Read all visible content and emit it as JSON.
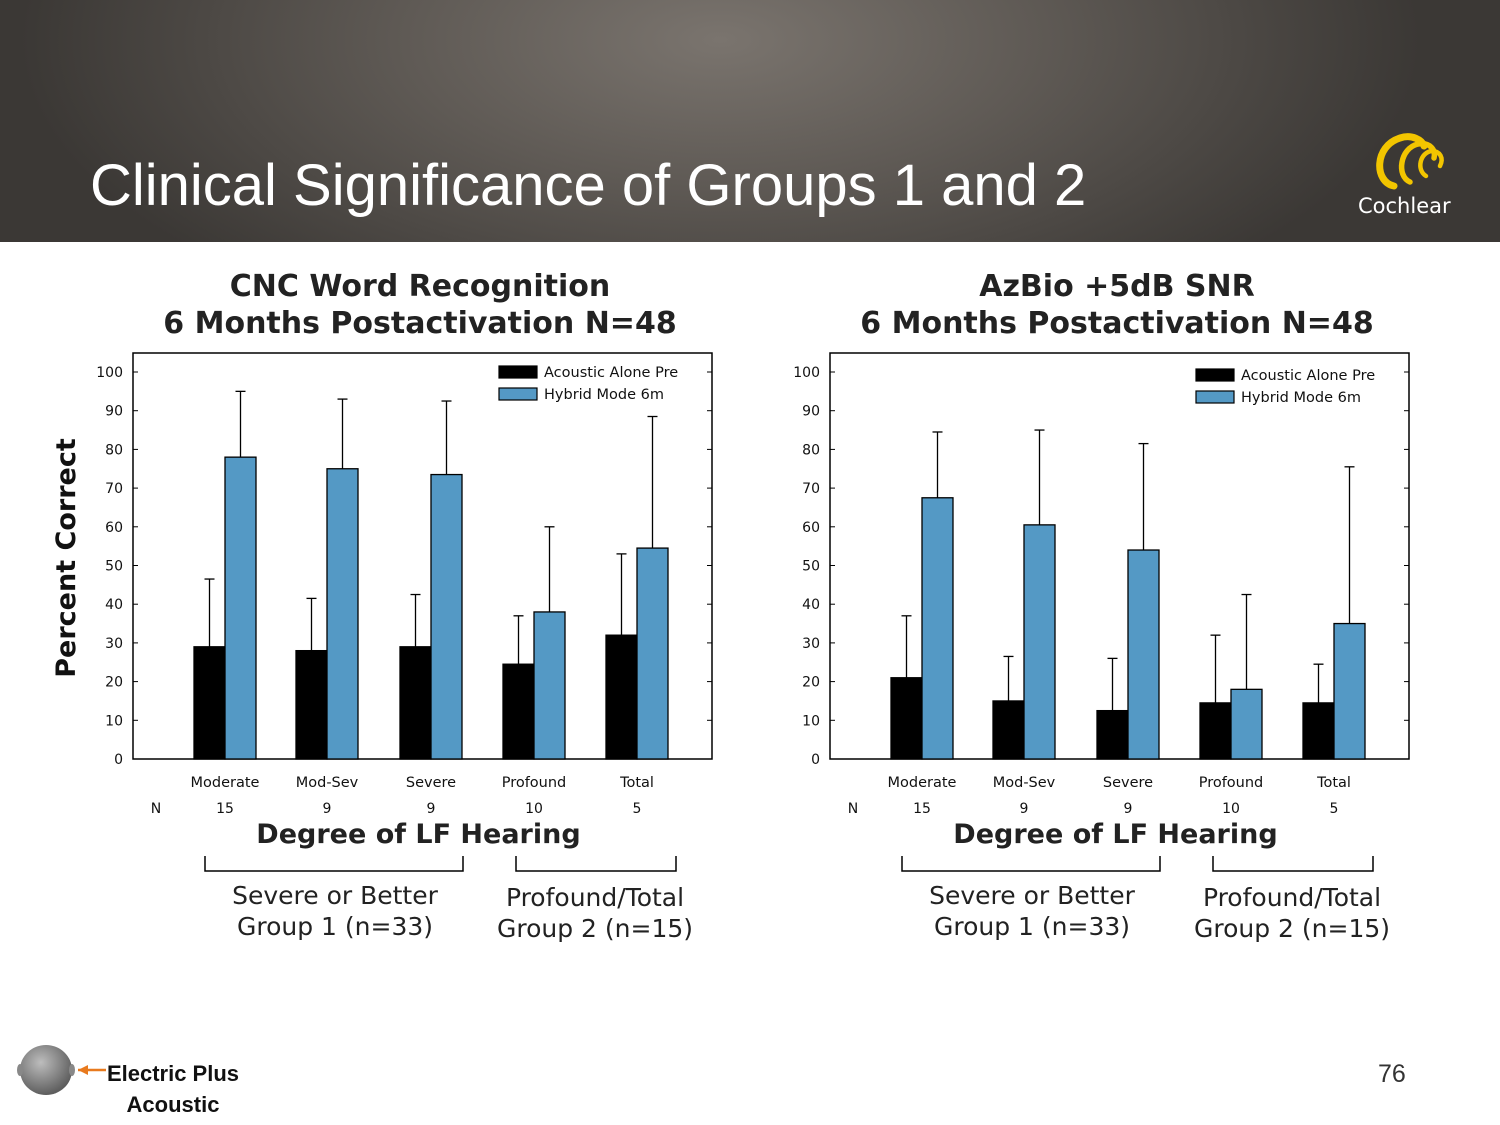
{
  "slide": {
    "title": "Clinical Significance of Groups 1 and 2",
    "brand": "Cochlear",
    "page_number": "76",
    "footer_label_line1": "Electric Plus",
    "footer_label_line2": "Acoustic",
    "colors": {
      "header_dark": "#3b3835",
      "brand_gold": "#f2c500",
      "arrow_orange": "#e87a1e"
    }
  },
  "group_labels": {
    "group1_line1": "Severe or Better",
    "group1_line2": "Group 1 (n=33)",
    "group2_line1": "Profound/Total",
    "group2_line2": "Group 2 (n=15)"
  },
  "chart_data": [
    {
      "type": "bar",
      "title_line1": "CNC Word Recognition",
      "title_line2": "6 Months Postactivation N=48",
      "xlabel": "Degree of LF Hearing",
      "ylabel": "Percent Correct",
      "ylim": [
        0,
        100
      ],
      "yticks": [
        0,
        10,
        20,
        30,
        40,
        50,
        60,
        70,
        80,
        90,
        100
      ],
      "categories": [
        "Moderate",
        "Mod-Sev",
        "Severe",
        "Profound",
        "Total"
      ],
      "n_label": "N",
      "n_values": [
        "15",
        "9",
        "9",
        "10",
        "5"
      ],
      "legend_position": "top-right",
      "series": [
        {
          "name": "Acoustic Alone Pre",
          "color": "#000000",
          "values": [
            29,
            28,
            29,
            24.5,
            32
          ],
          "error_upper": [
            46.5,
            41.5,
            42.5,
            37,
            53
          ]
        },
        {
          "name": "Hybrid Mode 6m",
          "color": "#5499c5",
          "values": [
            78,
            75,
            73.5,
            38,
            54.5
          ],
          "error_upper": [
            95,
            93,
            92.5,
            60,
            88.5
          ]
        }
      ]
    },
    {
      "type": "bar",
      "title_line1": "AzBio +5dB SNR",
      "title_line2": "6 Months Postactivation N=48",
      "xlabel": "Degree of LF Hearing",
      "ylabel": "",
      "ylim": [
        0,
        100
      ],
      "yticks": [
        0,
        10,
        20,
        30,
        40,
        50,
        60,
        70,
        80,
        90,
        100
      ],
      "categories": [
        "Moderate",
        "Mod-Sev",
        "Severe",
        "Profound",
        "Total"
      ],
      "n_label": "N",
      "n_values": [
        "15",
        "9",
        "9",
        "10",
        "5"
      ],
      "legend_position": "top-right",
      "series": [
        {
          "name": "Acoustic Alone Pre",
          "color": "#000000",
          "values": [
            21,
            15,
            12.5,
            14.5,
            14.5
          ],
          "error_upper": [
            37,
            26.5,
            26,
            32,
            24.5
          ]
        },
        {
          "name": "Hybrid Mode 6m",
          "color": "#5499c5",
          "values": [
            67.5,
            60.5,
            54,
            18,
            35
          ],
          "error_upper": [
            84.5,
            85,
            81.5,
            42.5,
            75.5
          ]
        }
      ]
    }
  ]
}
